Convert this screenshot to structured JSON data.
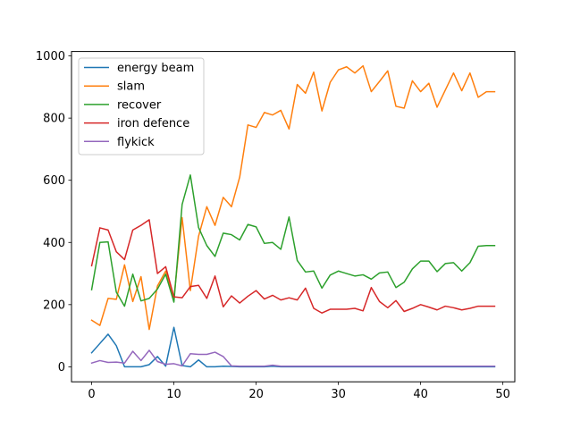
{
  "chart_data": {
    "type": "line",
    "title": "",
    "xlabel": "",
    "ylabel": "",
    "xlim": [
      -2.45,
      51.45
    ],
    "ylim": [
      -48.3,
      1014.3
    ],
    "xticks": [
      0,
      10,
      20,
      30,
      40,
      50
    ],
    "yticks": [
      0,
      200,
      400,
      600,
      800,
      1000
    ],
    "grid": false,
    "legend_position": "upper-left",
    "x": [
      0,
      1,
      2,
      3,
      4,
      5,
      6,
      7,
      8,
      9,
      10,
      11,
      12,
      13,
      14,
      15,
      16,
      17,
      18,
      19,
      20,
      21,
      22,
      23,
      24,
      25,
      26,
      27,
      28,
      29,
      30,
      31,
      32,
      33,
      34,
      35,
      36,
      37,
      38,
      39,
      40,
      41,
      42,
      43,
      44,
      45,
      46,
      47,
      48,
      49
    ],
    "series": [
      {
        "name": "energy beam",
        "color": "#1f77b4",
        "values": [
          45,
          75,
          105,
          68,
          0,
          0,
          0,
          7,
          33,
          2,
          127,
          4,
          0,
          22,
          0,
          0,
          2,
          1,
          0,
          0,
          0,
          0,
          2,
          0,
          0,
          0,
          0,
          0,
          0,
          0,
          0,
          0,
          0,
          0,
          0,
          0,
          0,
          0,
          0,
          0,
          0,
          0,
          0,
          0,
          0,
          0,
          0,
          0,
          0,
          0
        ]
      },
      {
        "name": "slam",
        "color": "#ff7f0e",
        "values": [
          150,
          133,
          220,
          217,
          328,
          210,
          290,
          120,
          260,
          308,
          220,
          480,
          245,
          420,
          515,
          455,
          545,
          515,
          610,
          778,
          770,
          818,
          810,
          825,
          765,
          908,
          880,
          948,
          823,
          915,
          955,
          965,
          945,
          968,
          885,
          918,
          952,
          838,
          832,
          920,
          885,
          912,
          835,
          890,
          945,
          888,
          945,
          867,
          885,
          885
        ]
      },
      {
        "name": "recover",
        "color": "#2ca02c",
        "values": [
          248,
          400,
          402,
          240,
          195,
          298,
          212,
          220,
          250,
          298,
          208,
          522,
          617,
          448,
          390,
          355,
          430,
          425,
          408,
          458,
          450,
          397,
          400,
          378,
          482,
          342,
          305,
          308,
          253,
          295,
          308,
          300,
          292,
          296,
          282,
          302,
          305,
          255,
          272,
          315,
          340,
          340,
          306,
          332,
          335,
          308,
          335,
          388,
          390,
          390
        ]
      },
      {
        "name": "iron defence",
        "color": "#d62728",
        "values": [
          325,
          447,
          440,
          370,
          345,
          440,
          455,
          473,
          300,
          322,
          225,
          222,
          258,
          262,
          220,
          292,
          193,
          228,
          205,
          227,
          245,
          218,
          230,
          215,
          222,
          215,
          253,
          188,
          173,
          185,
          185,
          185,
          188,
          180,
          255,
          210,
          190,
          213,
          178,
          188,
          200,
          192,
          183,
          195,
          190,
          183,
          188,
          195,
          195,
          195
        ]
      },
      {
        "name": "flykick",
        "color": "#9467bd",
        "values": [
          12,
          20,
          14,
          15,
          12,
          50,
          20,
          53,
          17,
          8,
          10,
          3,
          42,
          40,
          40,
          47,
          33,
          3,
          2,
          2,
          2,
          2,
          5,
          2,
          2,
          2,
          2,
          2,
          2,
          2,
          2,
          2,
          2,
          2,
          2,
          2,
          2,
          2,
          2,
          2,
          2,
          2,
          2,
          2,
          2,
          2,
          2,
          2,
          2,
          2
        ]
      }
    ]
  }
}
